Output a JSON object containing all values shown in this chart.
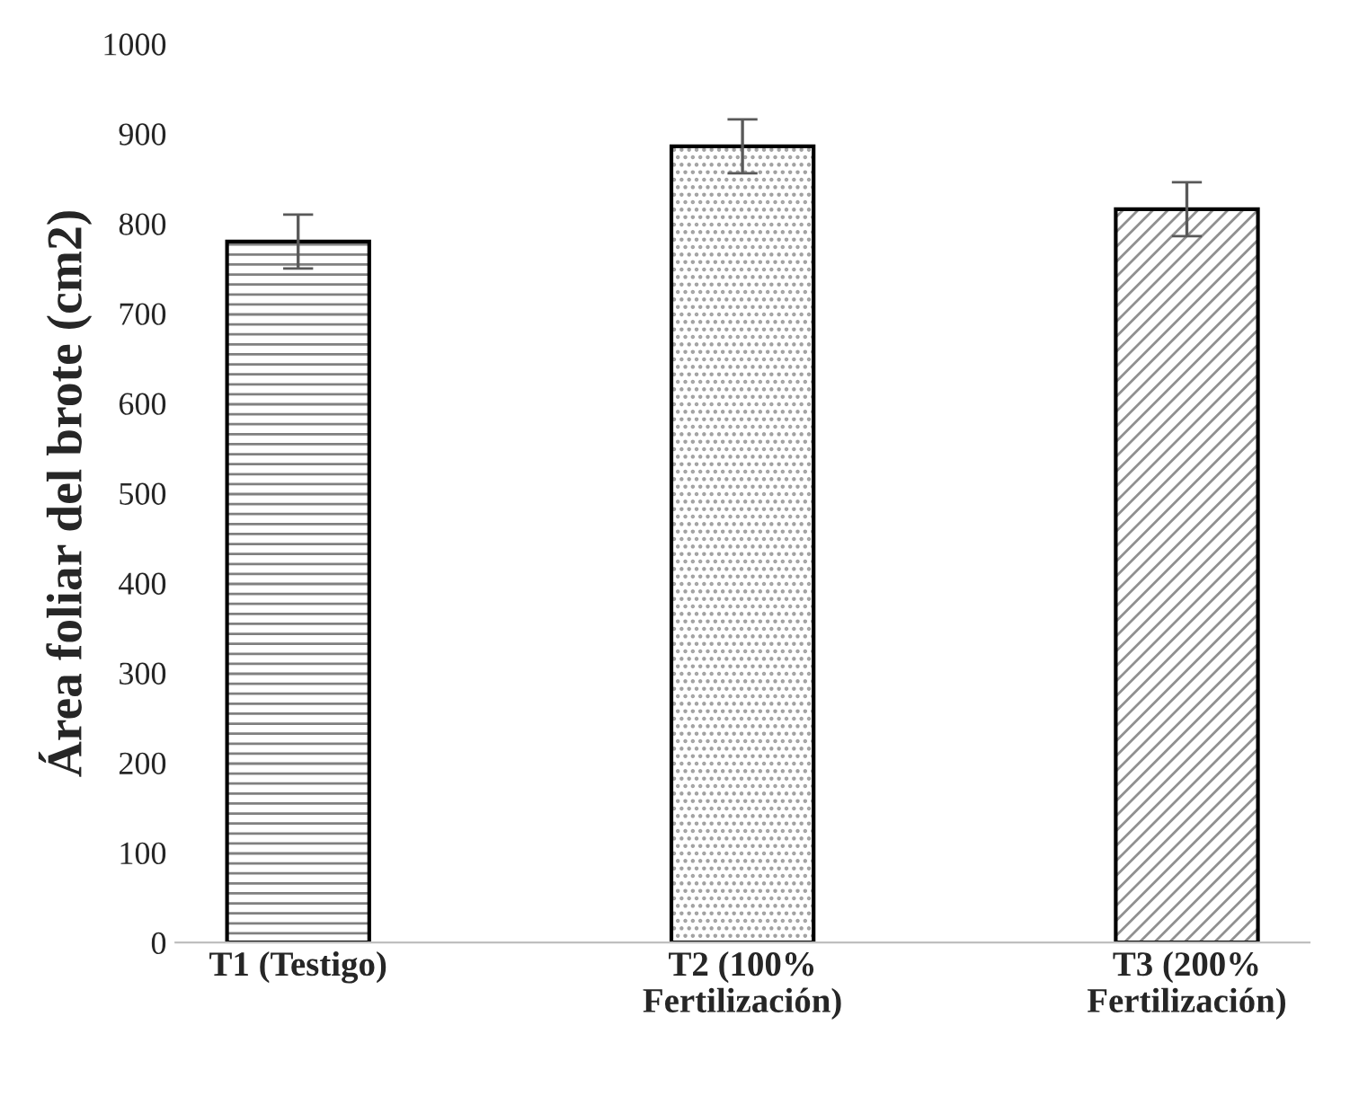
{
  "chart_data": {
    "type": "bar",
    "ylabel": "Área foliar del brote (cm2)",
    "categories": [
      "T1 (Testigo)",
      "T2 (100%\nFertilización)",
      "T3 (200%\nFertilización)"
    ],
    "values": [
      780,
      886,
      816
    ],
    "errors": [
      30,
      30,
      30
    ],
    "colors": [
      "#808080",
      "#a0a0a0",
      "#909090"
    ],
    "ylim": [
      0,
      1000
    ],
    "yticks": [
      0,
      100,
      200,
      300,
      400,
      500,
      600,
      700,
      800,
      900,
      1000
    ],
    "grid": false
  }
}
